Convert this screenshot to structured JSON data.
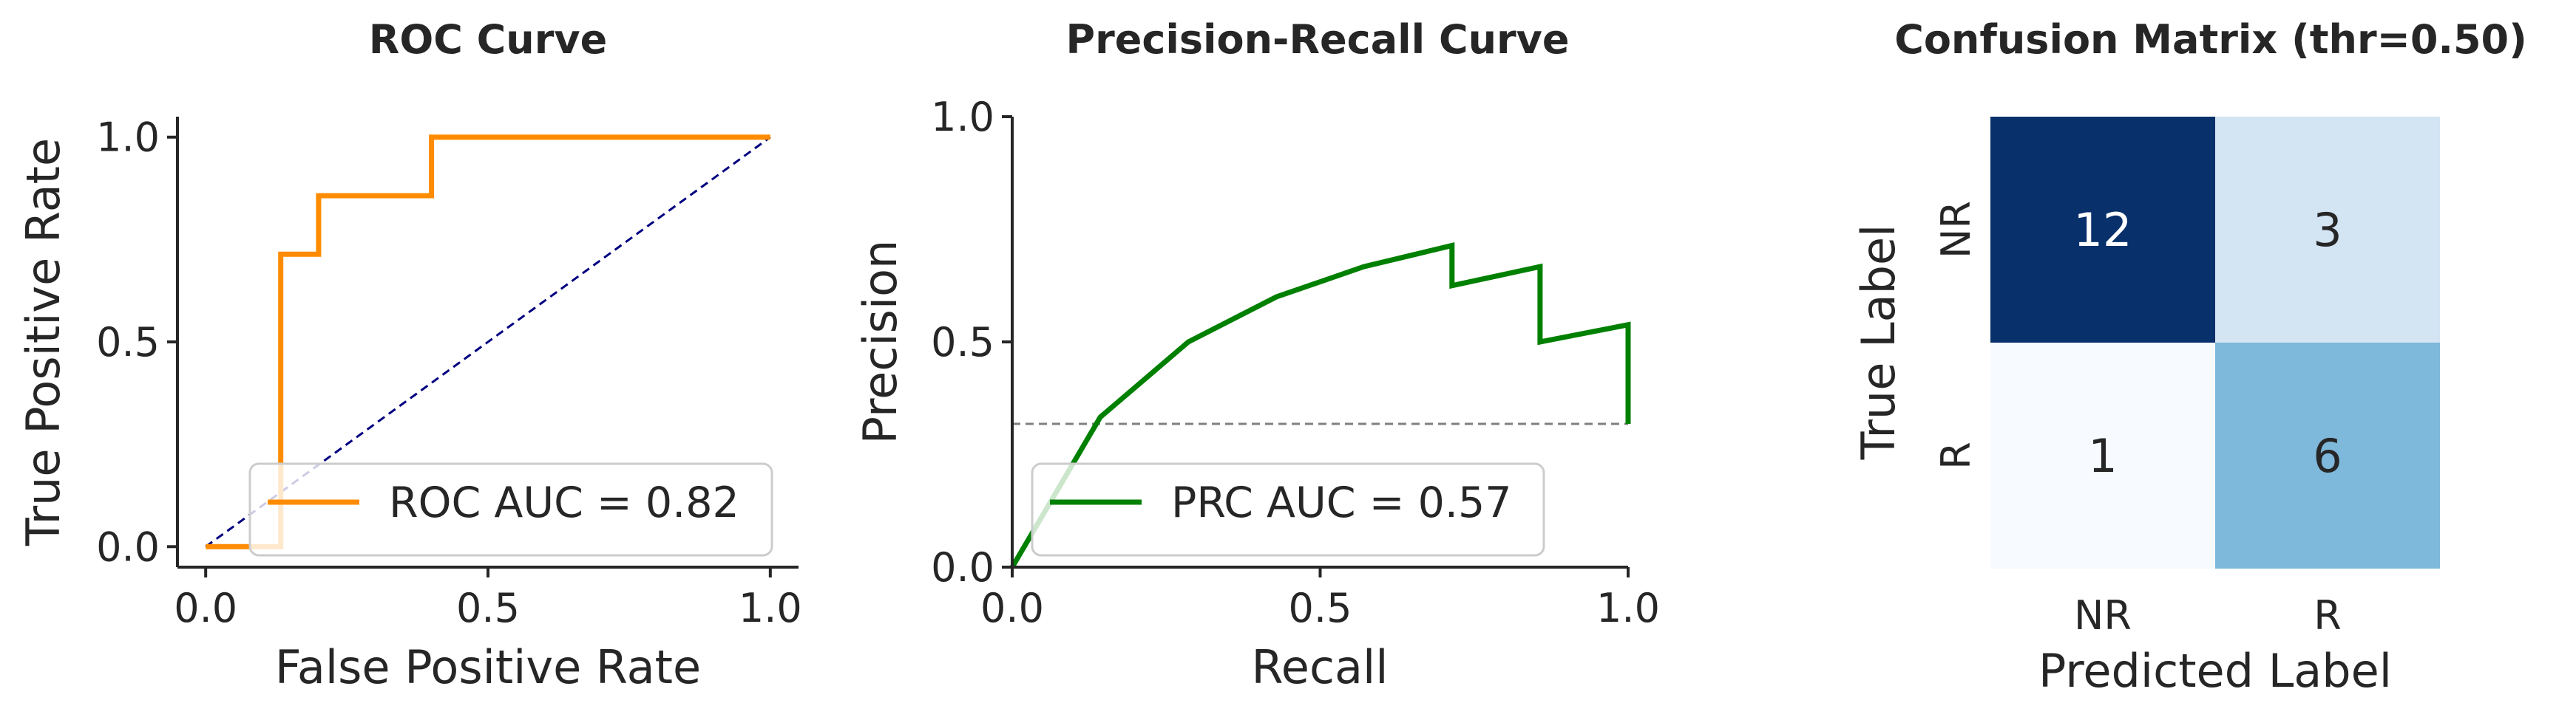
{
  "chart_data": [
    {
      "type": "line",
      "title": "ROC Curve",
      "xlabel": "False Positive Rate",
      "ylabel": "True Positive Rate",
      "xlim": [
        -0.05,
        1.05
      ],
      "ylim": [
        -0.05,
        1.05
      ],
      "xticks": [
        "0.0",
        "0.5",
        "1.0"
      ],
      "yticks": [
        "0.0",
        "0.5",
        "1.0"
      ],
      "series": [
        {
          "name": "ROC AUC = 0.82",
          "color": "#ff8c00",
          "x": [
            0.0,
            0.133,
            0.133,
            0.2,
            0.2,
            0.4,
            0.4,
            1.0
          ],
          "y": [
            0.0,
            0.0,
            0.714,
            0.714,
            0.857,
            0.857,
            1.0,
            1.0
          ]
        }
      ],
      "reference_line": {
        "x": [
          0.0,
          1.0
        ],
        "y": [
          0.0,
          1.0
        ],
        "color": "#000080",
        "style": "dashed"
      },
      "legend": "lower-right",
      "grid": false
    },
    {
      "type": "line",
      "title": "Precision-Recall Curve",
      "xlabel": "Recall",
      "ylabel": "Precision",
      "xlim": [
        0.0,
        1.0
      ],
      "ylim": [
        0.0,
        1.0
      ],
      "xticks": [
        "0.0",
        "0.5",
        "1.0"
      ],
      "yticks": [
        "0.0",
        "0.5",
        "1.0"
      ],
      "series": [
        {
          "name": "PRC AUC = 0.57",
          "color": "#008000",
          "x": [
            0.0,
            0.143,
            0.286,
            0.429,
            0.571,
            0.714,
            0.714,
            0.857,
            0.857,
            1.0,
            1.0
          ],
          "y": [
            0.0,
            0.333,
            0.5,
            0.6,
            0.667,
            0.714,
            0.625,
            0.667,
            0.5,
            0.538,
            0.318
          ]
        }
      ],
      "baseline": {
        "y": 0.318,
        "color": "#808080",
        "style": "dashed"
      },
      "legend": "lower-right",
      "grid": false
    },
    {
      "type": "heatmap",
      "title": "Confusion Matrix (thr=0.50)",
      "xlabel": "Predicted Label",
      "ylabel": "True Label",
      "x_categories": [
        "NR",
        "R"
      ],
      "y_categories": [
        "NR",
        "R"
      ],
      "values": [
        [
          12,
          3
        ],
        [
          1,
          6
        ]
      ],
      "colormap": "Blues"
    }
  ]
}
